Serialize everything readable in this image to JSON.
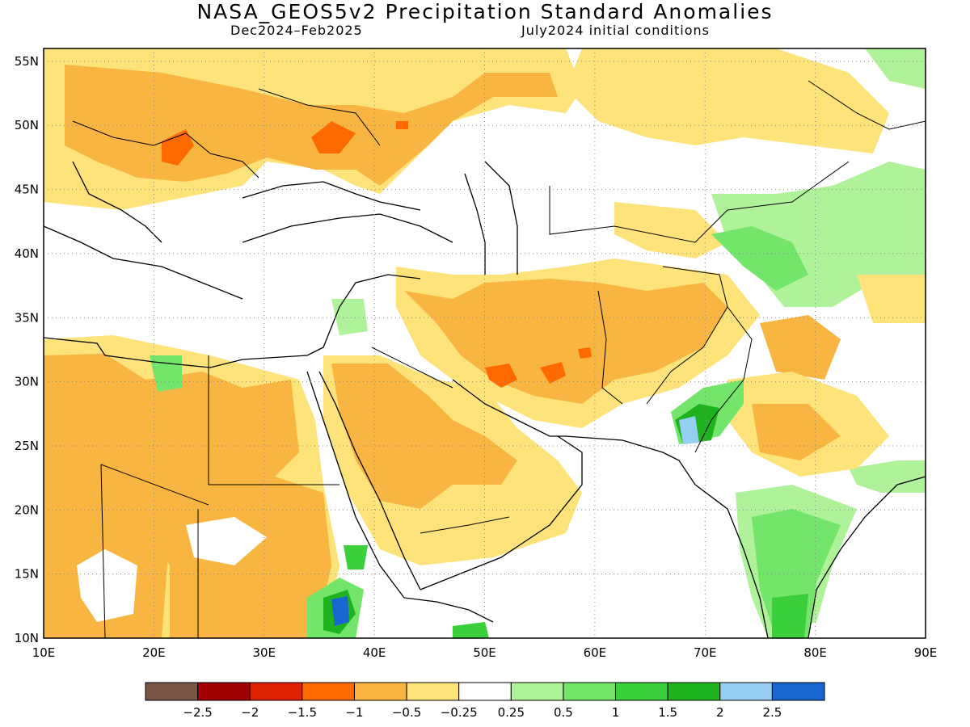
{
  "header": {
    "title": "NASA_GEOS5v2 Precipitation Standard Anomalies",
    "season": "Dec2024–Feb2025",
    "initial_conditions": "July2024 initial conditions"
  },
  "map": {
    "lon_range": [
      10,
      90
    ],
    "lat_range": [
      10,
      56
    ],
    "lon_ticks": [
      "10E",
      "20E",
      "30E",
      "40E",
      "50E",
      "60E",
      "70E",
      "80E",
      "90E"
    ],
    "lat_ticks": [
      "10N",
      "15N",
      "20N",
      "25N",
      "30N",
      "35N",
      "40N",
      "45N",
      "50N",
      "55N"
    ],
    "grid": "dotted"
  },
  "colorbar": {
    "colors": [
      "#7a5446",
      "#a20000",
      "#de2100",
      "#ff6a00",
      "#f9b541",
      "#fde37a",
      "#ffffff",
      "#b0f29a",
      "#73e56a",
      "#3ccf3c",
      "#1eb31e",
      "#96cef0",
      "#1a66d0"
    ],
    "labels": [
      "−2.5",
      "−2",
      "−1.5",
      "−1",
      "−0.5",
      "−0.25",
      "0.25",
      "0.5",
      "1",
      "1.5",
      "2",
      "2.5"
    ]
  }
}
